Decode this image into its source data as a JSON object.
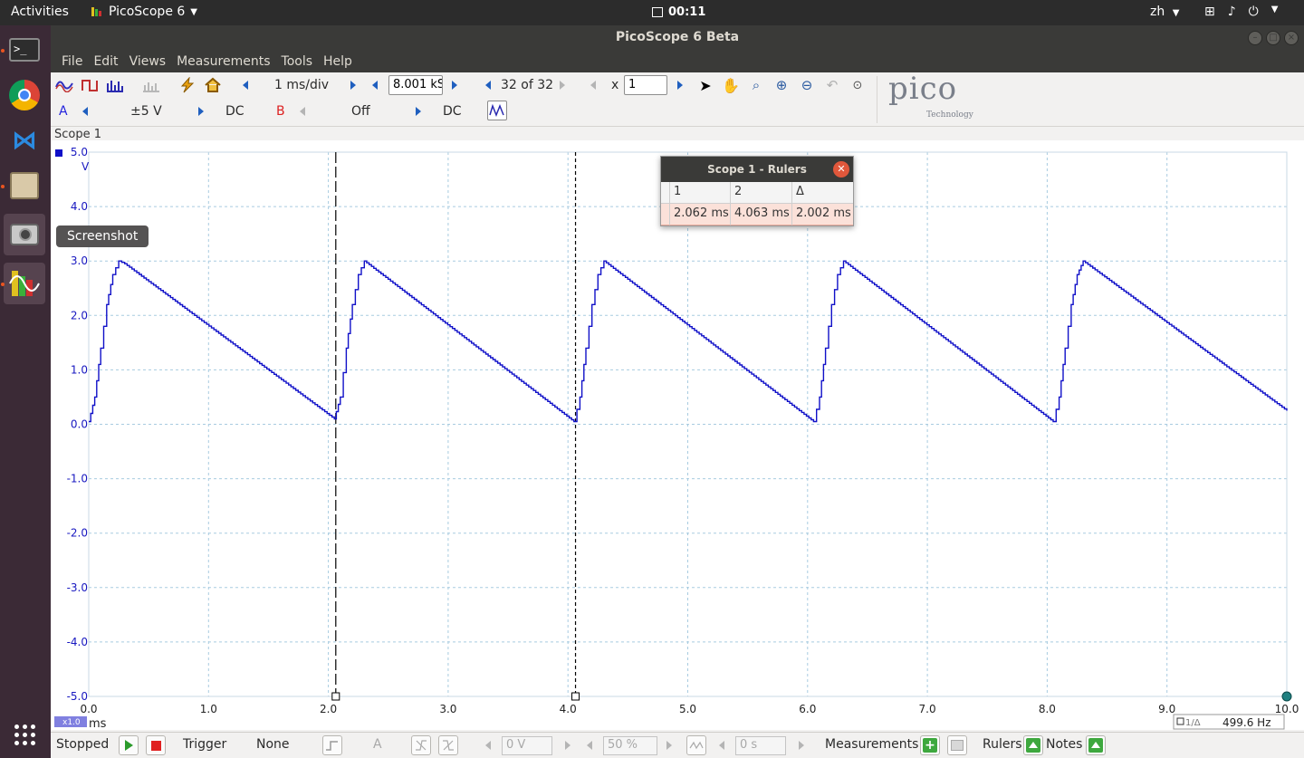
{
  "topbar": {
    "activities": "Activities",
    "app_name": "PicoScope 6",
    "clock": "00:11",
    "language": "zh"
  },
  "window": {
    "title": "PicoScope 6 Beta"
  },
  "menu": {
    "items": [
      "File",
      "Edit",
      "Views",
      "Measurements",
      "Tools",
      "Help"
    ]
  },
  "toolbar": {
    "timebase": "1 ms/div",
    "samples": "8.001 kS",
    "buffer": "32 of 32",
    "zoom_prefix": "x",
    "zoom_value": "1",
    "channel_a": {
      "label": "A",
      "range": "±5 V",
      "coupling": "DC",
      "color": "#2222dd"
    },
    "channel_b": {
      "label": "B",
      "range": "Off",
      "coupling": "DC",
      "color": "#dd2222"
    }
  },
  "scope": {
    "label": "Scope 1",
    "y_unit": "V",
    "x_unit": "ms",
    "x_zoom_badge": "x1.0",
    "y_ticks": [
      "5.0",
      "4.0",
      "3.0",
      "2.0",
      "1.0",
      "0.0",
      "-1.0",
      "-2.0",
      "-3.0",
      "-4.0",
      "-5.0"
    ],
    "x_ticks": [
      "0.0",
      "1.0",
      "2.0",
      "3.0",
      "4.0",
      "5.0",
      "6.0",
      "7.0",
      "8.0",
      "9.0",
      "10.0"
    ],
    "frequency_label": "1/Δ",
    "frequency_value": "499.6 Hz"
  },
  "chart_data": {
    "type": "line",
    "xlabel": "ms",
    "ylabel": "V",
    "xlim": [
      0,
      10
    ],
    "ylim": [
      -5,
      5
    ],
    "grid": true,
    "series": [
      {
        "name": "A",
        "color": "#1010c8",
        "x": [
          0.0,
          0.05,
          0.1,
          0.15,
          0.2,
          0.25,
          0.3,
          2.05,
          2.1,
          2.15,
          2.2,
          2.25,
          2.3,
          4.05,
          4.1,
          4.15,
          4.2,
          4.25,
          4.3,
          6.05,
          6.1,
          6.15,
          6.2,
          6.25,
          6.3,
          8.05,
          8.1,
          8.15,
          8.2,
          8.25,
          8.3,
          10.0
        ],
        "y": [
          0.05,
          0.5,
          1.4,
          2.2,
          2.75,
          3.0,
          2.95,
          0.1,
          0.5,
          1.4,
          2.2,
          2.75,
          3.0,
          0.05,
          0.5,
          1.4,
          2.2,
          2.75,
          3.0,
          0.05,
          0.5,
          1.4,
          2.2,
          2.75,
          3.0,
          0.05,
          0.5,
          1.4,
          2.2,
          2.75,
          3.0,
          0.25
        ]
      }
    ],
    "rulers_ms": [
      2.062,
      4.063
    ]
  },
  "rulers_dialog": {
    "title": "Scope 1 - Rulers",
    "headers": [
      "1",
      "2",
      "Δ"
    ],
    "values": [
      "2.062 ms",
      "4.063 ms",
      "2.002 ms"
    ]
  },
  "tooltip": "Screenshot",
  "statusbar": {
    "state": "Stopped",
    "trigger_label": "Trigger",
    "trigger_mode": "None",
    "trigger_channel": "A",
    "threshold": "0 V",
    "percent": "50 %",
    "delay": "0 s",
    "measurements": "Measurements",
    "rulers": "Rulers",
    "notes": "Notes"
  }
}
